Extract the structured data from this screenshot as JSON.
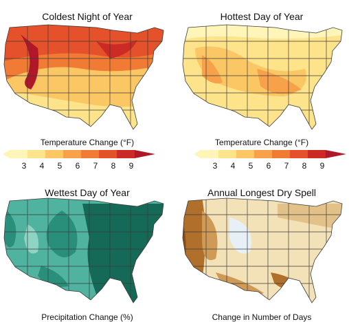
{
  "panels": [
    {
      "title": "Coldest Night of Year",
      "legend_title": "Temperature Change (°F)",
      "ticks": [
        "3",
        "4",
        "5",
        "6",
        "7",
        "8",
        "9"
      ]
    },
    {
      "title": "Hottest Day of Year",
      "legend_title": "Temperature Change (°F)",
      "ticks": [
        "3",
        "4",
        "5",
        "6",
        "7",
        "8",
        "9"
      ]
    },
    {
      "title": "Wettest Day of Year",
      "legend_title": "Precipitation Change (%)"
    },
    {
      "title": "Annual Longest Dry Spell",
      "legend_title": "Change in Number of Days"
    }
  ],
  "colors": {
    "temp_scale": [
      "#fff5b8",
      "#fde38a",
      "#fbc765",
      "#f7a24a",
      "#f17a35",
      "#e4512a",
      "#cc2a24",
      "#b0182a"
    ],
    "precip_green": [
      "#cfeee6",
      "#8fd3c4",
      "#4fb3a0",
      "#2a8f7a",
      "#146a56"
    ],
    "drought_brown": [
      "#f3e1b8",
      "#e3c28a",
      "#cf9a55",
      "#b06f2b",
      "#8c4d15"
    ],
    "state_line": "#3a3a3a"
  }
}
